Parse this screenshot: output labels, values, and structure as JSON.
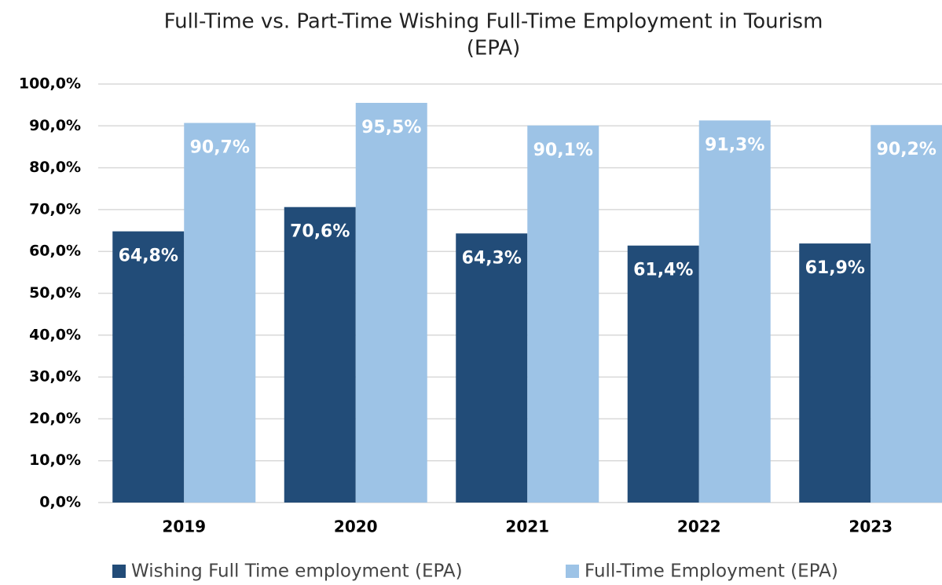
{
  "chart_data": {
    "type": "bar",
    "title": [
      "Full-Time vs. Part-Time Wishing Full-Time Employment in Tourism",
      "(EPA)"
    ],
    "categories": [
      "2019",
      "2020",
      "2021",
      "2022",
      "2023"
    ],
    "series": [
      {
        "name": "Wishing Full Time employment (EPA)",
        "color": "#224c78",
        "values": [
          64.8,
          70.6,
          64.3,
          61.4,
          61.9
        ],
        "value_labels": [
          "64,8%",
          "70,6%",
          "64,3%",
          "61,4%",
          "61,9%"
        ]
      },
      {
        "name": "Full-Time Employment (EPA)",
        "color": "#9dc3e6",
        "values": [
          90.7,
          95.5,
          90.1,
          91.3,
          90.2
        ],
        "value_labels": [
          "90,7%",
          "95,5%",
          "90,1%",
          "91,3%",
          "90,2%"
        ]
      }
    ],
    "ylim": [
      0,
      100
    ],
    "yticks": [
      {
        "value": 0,
        "label": "0,0%"
      },
      {
        "value": 10,
        "label": "10,0%"
      },
      {
        "value": 20,
        "label": "20,0%"
      },
      {
        "value": 30,
        "label": "30,0%"
      },
      {
        "value": 40,
        "label": "40,0%"
      },
      {
        "value": 50,
        "label": "50,0%"
      },
      {
        "value": 60,
        "label": "60,0%"
      },
      {
        "value": 70,
        "label": "70,0%"
      },
      {
        "value": 80,
        "label": "80,0%"
      },
      {
        "value": 90,
        "label": "90,0%"
      },
      {
        "value": 100,
        "label": "100,0%"
      }
    ],
    "grid": true,
    "legend": "bottom"
  }
}
